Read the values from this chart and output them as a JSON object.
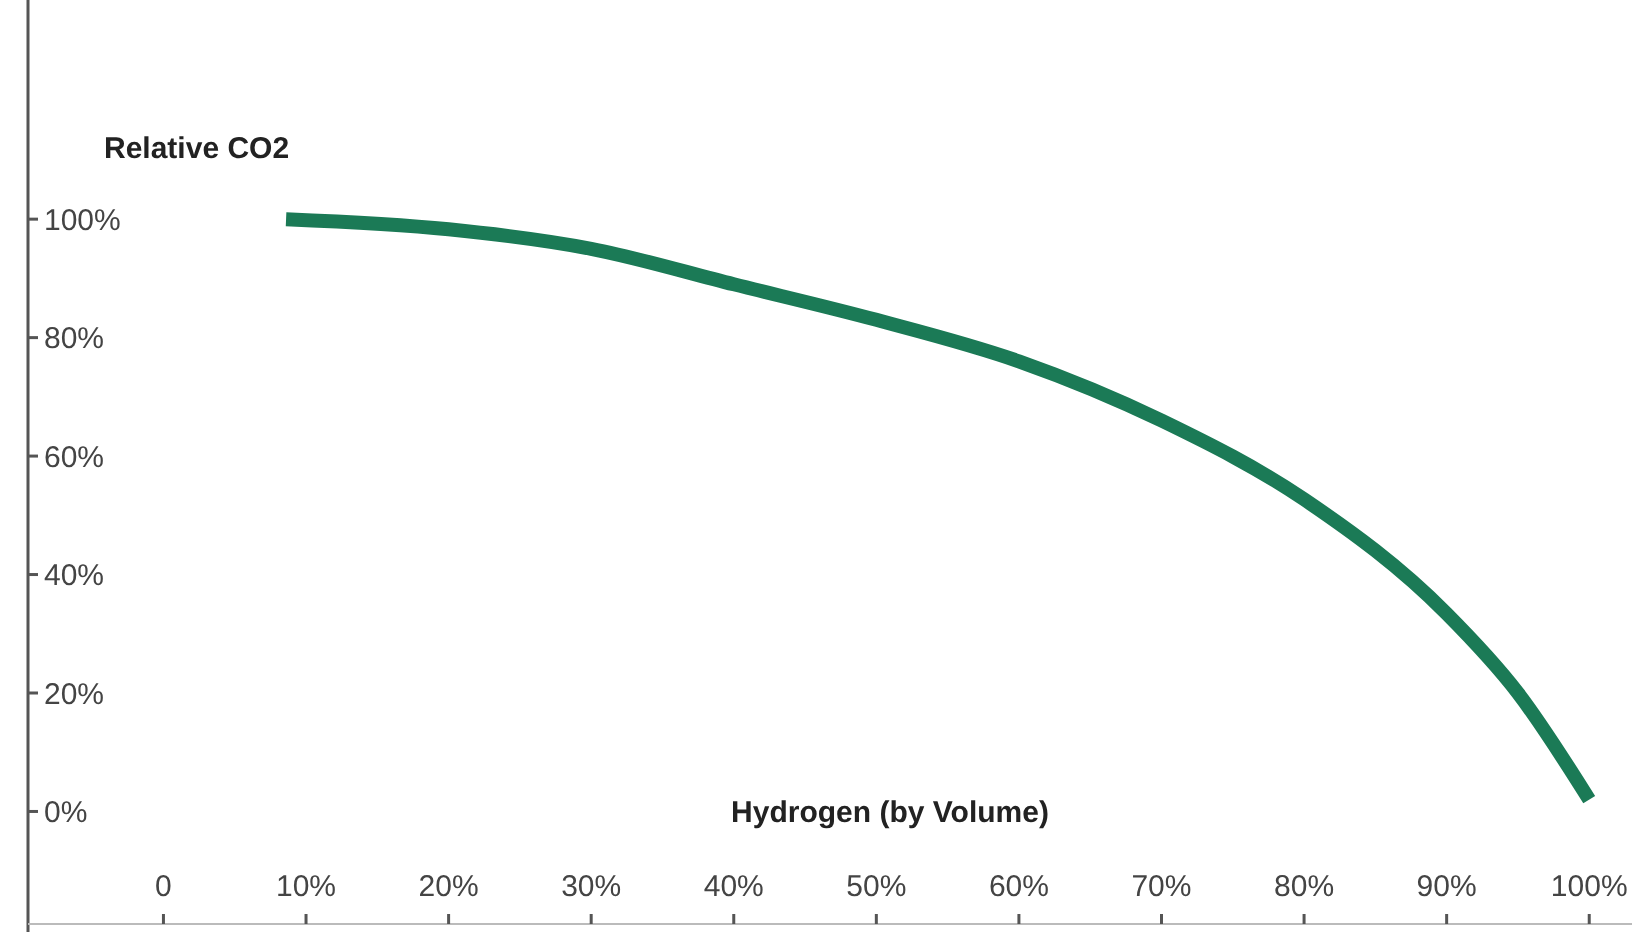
{
  "chart_data": {
    "type": "line",
    "ylabel": "Relative CO2",
    "xlabel": "Hydrogen (by Volume)",
    "x": [
      8.6,
      20,
      30,
      40,
      50,
      60,
      70,
      80,
      90,
      95,
      100
    ],
    "series": [
      {
        "color": "#1b7a56",
        "values": [
          100,
          98.3,
          95,
          89,
          83,
          76,
          66,
          52.7,
          33.4,
          20,
          2
        ]
      }
    ],
    "xlim": [
      -9.5,
      103
    ],
    "ylim": [
      -19,
      137
    ],
    "xticks": [
      {
        "value": 0,
        "label": "0"
      },
      {
        "value": 10,
        "label": "10%"
      },
      {
        "value": 20,
        "label": "20%"
      },
      {
        "value": 30,
        "label": "30%"
      },
      {
        "value": 40,
        "label": "40%"
      },
      {
        "value": 50,
        "label": "50%"
      },
      {
        "value": 60,
        "label": "60%"
      },
      {
        "value": 70,
        "label": "70%"
      },
      {
        "value": 80,
        "label": "80%"
      },
      {
        "value": 90,
        "label": "90%"
      },
      {
        "value": 100,
        "label": "100%"
      }
    ],
    "yticks": [
      {
        "value": 0,
        "label": "0%"
      },
      {
        "value": 20,
        "label": "20%"
      },
      {
        "value": 40,
        "label": "40%"
      },
      {
        "value": 60,
        "label": "60%"
      },
      {
        "value": 80,
        "label": "80%"
      },
      {
        "value": 100,
        "label": "100%"
      }
    ],
    "grid": false,
    "marker": "none",
    "line_style": "solid"
  }
}
